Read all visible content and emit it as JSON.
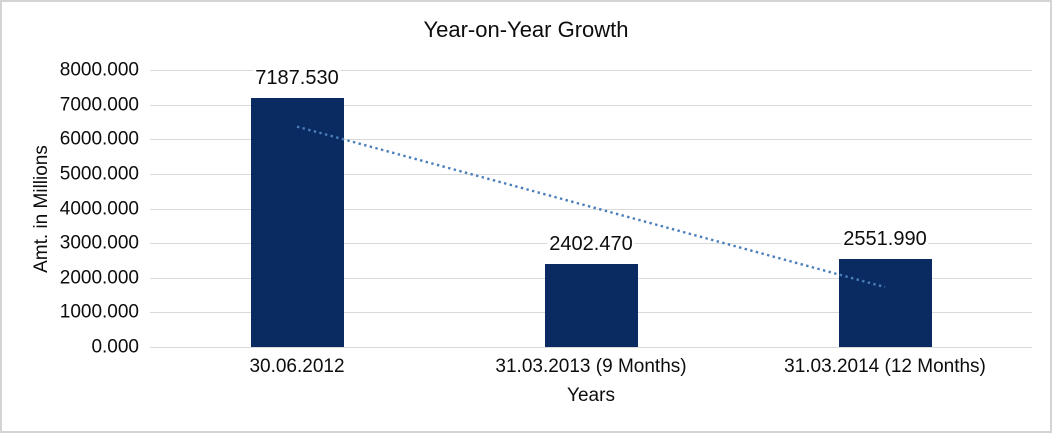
{
  "chart_data": {
    "type": "bar",
    "title": "Year-on-Year Growth",
    "xlabel": "Years",
    "ylabel": "Amt. in Millions",
    "categories": [
      "30.06.2012",
      "31.03.2013 (9 Months)",
      "31.03.2014 (12 Months)"
    ],
    "values": [
      7187.53,
      2402.47,
      2551.99
    ],
    "data_labels": [
      "7187.530",
      "2402.470",
      "2551.990"
    ],
    "ylim": [
      0,
      8000
    ],
    "ytick_step": 1000,
    "ytick_labels": [
      "8000.000",
      "7000.000",
      "6000.000",
      "5000.000",
      "4000.000",
      "3000.000",
      "2000.000",
      "1000.000",
      "0.000"
    ],
    "grid": true,
    "legend": "none",
    "trendline": {
      "style": "dotted",
      "shape": "linear",
      "from": {
        "category_index": 0,
        "value": 6365
      },
      "to": {
        "category_index": 2,
        "value": 1730
      }
    },
    "colors": {
      "bar": "#0a2b61",
      "trendline": "#4a7ebb",
      "gridline": "#d9d9d9",
      "text": "#0d0d0d",
      "chart_border": "#d4d4d4",
      "background": "#ffffff"
    }
  }
}
